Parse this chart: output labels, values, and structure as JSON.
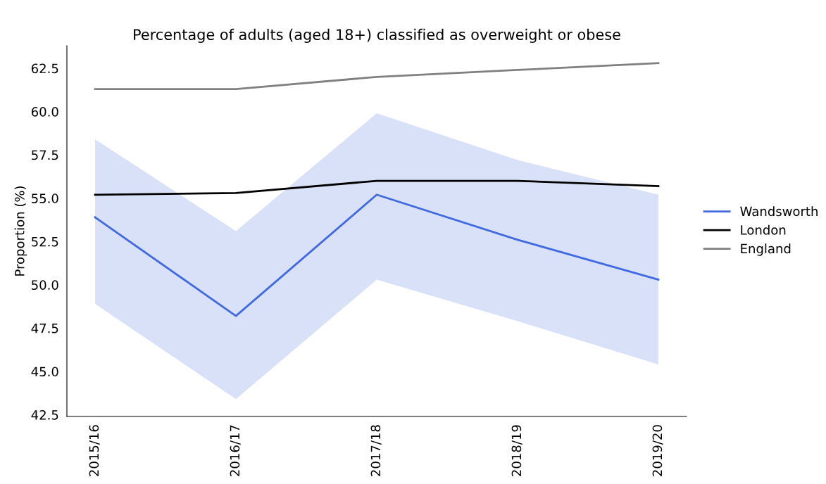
{
  "chart_data": {
    "type": "line",
    "title": "Percentage of adults (aged 18+) classified as overweight or obese",
    "ylabel": "Proportion (%)",
    "categories": [
      "2015/16",
      "2016/17",
      "2017/18",
      "2018/19",
      "2019/20"
    ],
    "series": [
      {
        "name": "Wandsworth",
        "color": "#4169e1",
        "values": [
          53.9,
          48.2,
          55.2,
          52.6,
          50.3
        ],
        "lower": [
          48.9,
          43.4,
          50.3,
          47.9,
          45.4
        ],
        "upper": [
          58.4,
          53.1,
          59.9,
          57.2,
          55.2
        ]
      },
      {
        "name": "London",
        "color": "#000000",
        "values": [
          55.2,
          55.3,
          56.0,
          56.0,
          55.7
        ]
      },
      {
        "name": "England",
        "color": "#808080",
        "values": [
          61.3,
          61.3,
          62.0,
          62.4,
          62.8
        ]
      }
    ],
    "ylim": [
      42.4,
      63.8
    ],
    "yticks": [
      42.5,
      {
        "value": 45,
        "label": "45.0"
      },
      47.5,
      {
        "value": 50,
        "label": "50.0"
      },
      52.5,
      {
        "value": 55,
        "label": "55.0"
      },
      57.5,
      {
        "value": 60,
        "label": "60.0"
      },
      62.5
    ],
    "legend": "right",
    "grid": false,
    "line_style": "solid",
    "marker": "none"
  }
}
